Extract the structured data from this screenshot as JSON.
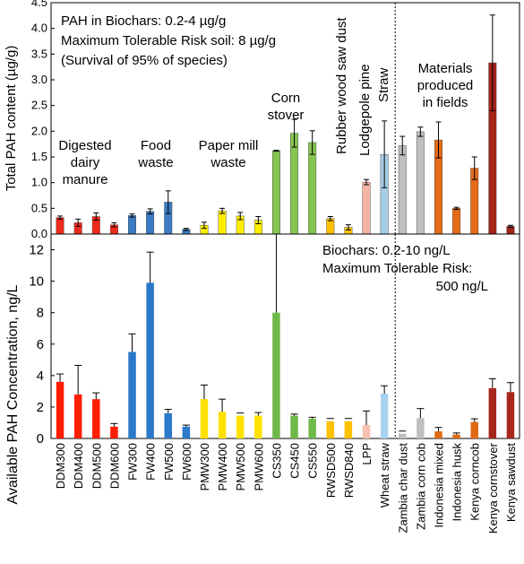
{
  "chart_data": [
    {
      "type": "bar",
      "ylabel": "Total PAH content (µg/g)",
      "ylim": [
        0,
        4.5
      ],
      "yticks": [
        "0.0",
        "0.5",
        "1.0",
        "1.5",
        "2.0",
        "2.5",
        "3.0",
        "3.5",
        "4.0",
        "4.5"
      ],
      "info_lines": [
        "PAH in Biochars:            0.2-4 µg/g",
        "Maximum Tolerable Risk soil: 8 µg/g",
        "(Survival of 95% of species)"
      ],
      "group_labels": [
        {
          "key": "ddm",
          "lines": [
            "Digested",
            "dairy",
            "manure"
          ]
        },
        {
          "key": "fw",
          "lines": [
            "Food",
            "waste"
          ]
        },
        {
          "key": "pmw",
          "lines": [
            "Paper mill",
            "waste"
          ]
        },
        {
          "key": "cs",
          "lines": [
            "Corn",
            "stover"
          ]
        },
        {
          "key": "rwsd",
          "lines": [
            "Rubber wood saw dust"
          ]
        },
        {
          "key": "lpp",
          "lines": [
            "Lodgepole pine"
          ]
        },
        {
          "key": "straw",
          "lines": [
            "Straw"
          ]
        },
        {
          "key": "fields",
          "lines": [
            "Materials",
            "produced",
            "in fields"
          ]
        }
      ],
      "categories": [
        "DDM300",
        "DDM400",
        "DDM500",
        "DDM600",
        "FW300",
        "FW400",
        "FW500",
        "FW600",
        "PMW300",
        "PMW400",
        "PMW500",
        "PMW600",
        "CS350",
        "CS450",
        "CS550",
        "RWSD500",
        "RWSD840",
        "LPP",
        "Wheat straw",
        "Zambia char dust",
        "Zambia corn cob",
        "Indonesia mixed",
        "Indonesia husk",
        "Kenya corncob",
        "Kenya cornstover",
        "Kenya sawdust"
      ],
      "values": [
        0.32,
        0.22,
        0.34,
        0.18,
        0.36,
        0.44,
        0.62,
        0.09,
        0.17,
        0.45,
        0.35,
        0.27,
        1.62,
        1.96,
        1.78,
        0.3,
        0.13,
        1.01,
        1.55,
        1.72,
        1.99,
        1.83,
        0.5,
        1.28,
        3.33,
        0.15
      ],
      "errors": [
        0.03,
        0.07,
        0.07,
        0.04,
        0.03,
        0.05,
        0.22,
        0.02,
        0.06,
        0.05,
        0.07,
        0.07,
        0.01,
        0.27,
        0.23,
        0.04,
        0.05,
        0.05,
        0.65,
        0.18,
        0.09,
        0.35,
        0.02,
        0.22,
        0.93,
        0.02
      ],
      "colors": [
        "#ee2a1c",
        "#ee2a1c",
        "#ee2a1c",
        "#ee2a1c",
        "#3b7cc4",
        "#3b7cc4",
        "#3b7cc4",
        "#3b7cc4",
        "#ffee00",
        "#ffee00",
        "#ffee00",
        "#ffee00",
        "#86c452",
        "#86c452",
        "#86c452",
        "#ffc000",
        "#ffc000",
        "#f4b3a3",
        "#a6cde6",
        "#bfbfbf",
        "#bfbfbf",
        "#e56b17",
        "#e56b17",
        "#e56b17",
        "#a32418",
        "#a32418"
      ]
    },
    {
      "type": "bar",
      "ylabel": "Available PAH Concentration, ng/L",
      "ylim": [
        0,
        13
      ],
      "yticks": [
        "0",
        "2",
        "4",
        "6",
        "8",
        "10",
        "12"
      ],
      "info_lines": [
        "Biochars:        0.2-10 ng/L",
        "Maximum Tolerable Risk:",
        "500 ng/L"
      ],
      "categories": [
        "DDM300",
        "DDM400",
        "DDM500",
        "DDM600",
        "FW300",
        "FW400",
        "FW500",
        "FW600",
        "PMW300",
        "PMW400",
        "PMW500",
        "PMW600",
        "CS350",
        "CS450",
        "CS550",
        "RWSD500",
        "RWSD840",
        "LPP",
        "Wheat straw",
        "Zambia char dust",
        "Zambia corn cob",
        "Indonesia mixed",
        "Indonesia husk",
        "Kenya corncob",
        "Kenya cornstover",
        "Kenya sawdust"
      ],
      "values": [
        3.6,
        2.8,
        2.5,
        0.75,
        5.5,
        9.9,
        1.6,
        0.75,
        2.5,
        1.7,
        1.45,
        1.45,
        8.0,
        1.45,
        1.25,
        1.1,
        1.1,
        0.85,
        2.85,
        0.3,
        1.3,
        0.45,
        0.25,
        1.05,
        3.2,
        2.95
      ],
      "errors": [
        0.5,
        1.85,
        0.4,
        0.2,
        1.15,
        1.95,
        0.25,
        0.1,
        0.9,
        0.8,
        0.0,
        0.2,
        5.0,
        0.1,
        0.1,
        0.0,
        0.0,
        0.9,
        0.5,
        0.0,
        0.6,
        0.25,
        0.1,
        0.2,
        0.6,
        0.6
      ],
      "colors": [
        "#ff1e00",
        "#ff1e00",
        "#ff1e00",
        "#ff1e00",
        "#2b79c9",
        "#2b79c9",
        "#2b79c9",
        "#2b79c9",
        "#ffe100",
        "#ffe100",
        "#ffe100",
        "#ffe100",
        "#6fb84a",
        "#6fb84a",
        "#6fb84a",
        "#ffc000",
        "#ffc000",
        "#f8c1b1",
        "#a9d2ee",
        "#bfbfbf",
        "#bfbfbf",
        "#e06a12",
        "#e06a12",
        "#e06a12",
        "#a7271d",
        "#a7271d"
      ]
    }
  ]
}
